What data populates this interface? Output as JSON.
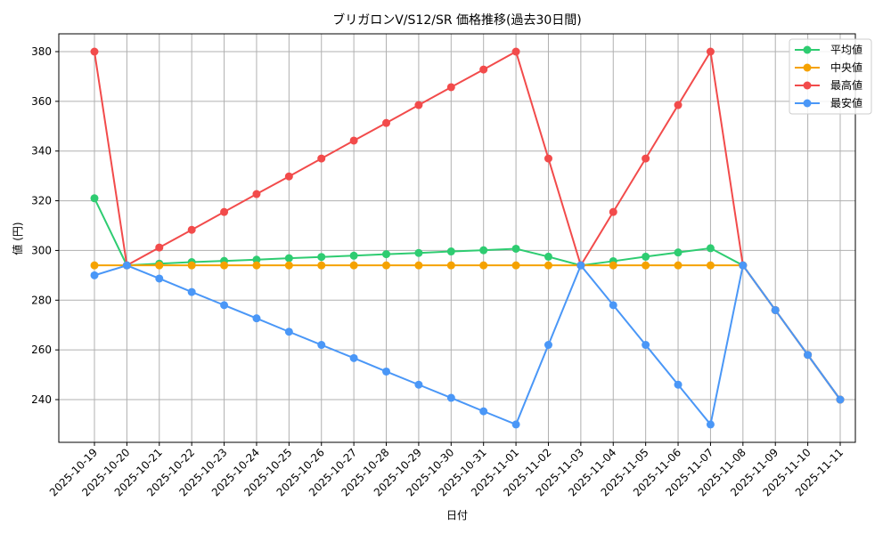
{
  "chart_data": {
    "type": "line",
    "title": "ブリガロンV/S12/SR 価格推移(過去30日間)",
    "xlabel": "日付",
    "ylabel": "値 (円)",
    "ylim": [
      222,
      387
    ],
    "yticks": [
      240,
      260,
      280,
      300,
      320,
      340,
      360,
      380
    ],
    "grid": true,
    "legend_position": "upper right",
    "categories": [
      "2025-10-19",
      "2025-10-20",
      "2025-10-21",
      "2025-10-22",
      "2025-10-23",
      "2025-10-24",
      "2025-10-25",
      "2025-10-26",
      "2025-10-27",
      "2025-10-28",
      "2025-10-29",
      "2025-10-30",
      "2025-10-31",
      "2025-11-01",
      "2025-11-02",
      "2025-11-03",
      "2025-11-04",
      "2025-11-05",
      "2025-11-06",
      "2025-11-07",
      "2025-11-08",
      "2025-11-09",
      "2025-11-10",
      "2025-11-11"
    ],
    "series": [
      {
        "name": "平均値",
        "color": "#2ecc71",
        "values": [
          321,
          294,
          294.7,
          295.3,
          295.8,
          296.3,
          296.9,
          297.4,
          297.9,
          298.5,
          299.0,
          299.6,
          300.1,
          300.7,
          297.5,
          294,
          295.7,
          297.5,
          299.2,
          300.9,
          294,
          276,
          258,
          240
        ]
      },
      {
        "name": "中央値",
        "color": "#f5a200",
        "values": [
          294,
          294,
          294,
          294,
          294,
          294,
          294,
          294,
          294,
          294,
          294,
          294,
          294,
          294,
          294,
          294,
          294,
          294,
          294,
          294,
          294,
          276,
          258,
          240
        ]
      },
      {
        "name": "最高値",
        "color": "#f24b4b",
        "values": [
          380,
          294,
          301.2,
          308.3,
          315.5,
          322.7,
          329.8,
          337,
          344.2,
          351.3,
          358.5,
          365.7,
          372.8,
          380,
          337,
          294,
          315.5,
          337,
          358.5,
          380,
          294,
          276,
          258,
          240
        ]
      },
      {
        "name": "最安値",
        "color": "#4a97f7",
        "values": [
          290,
          294,
          288.7,
          283.3,
          278,
          272.7,
          267.3,
          262,
          256.7,
          251.3,
          246,
          240.7,
          235.3,
          230,
          262,
          294,
          278,
          262,
          246,
          230,
          294,
          276,
          258,
          240
        ]
      }
    ]
  }
}
